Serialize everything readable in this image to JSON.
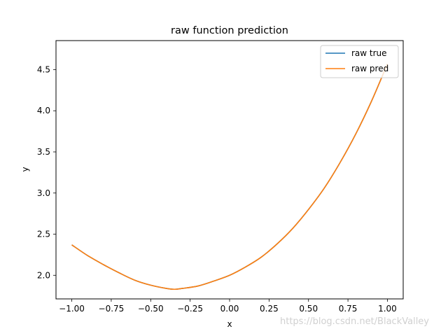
{
  "chart_data": {
    "type": "line",
    "title": "raw function prediction",
    "xlabel": "x",
    "ylabel": "y",
    "xlim": [
      -1.1,
      1.1
    ],
    "ylim": [
      1.713,
      4.853
    ],
    "xticks": [
      -1.0,
      -0.75,
      -0.5,
      -0.25,
      0.0,
      0.25,
      0.5,
      0.75,
      1.0
    ],
    "xtick_labels": [
      "−1.00",
      "−0.75",
      "−0.50",
      "−0.25",
      "0.00",
      "0.25",
      "0.50",
      "0.75",
      "1.00"
    ],
    "yticks": [
      2.0,
      2.5,
      3.0,
      3.5,
      4.0,
      4.5
    ],
    "ytick_labels": [
      "2.0",
      "2.5",
      "3.0",
      "3.5",
      "4.0",
      "4.5"
    ],
    "grid": false,
    "legend_position": "top-right",
    "series": [
      {
        "name": "raw true",
        "color": "#1f77b4",
        "x": [
          -1.0,
          -0.9,
          -0.8,
          -0.7,
          -0.6,
          -0.5,
          -0.4,
          -0.35,
          -0.3,
          -0.2,
          -0.1,
          0.0,
          0.1,
          0.2,
          0.3,
          0.4,
          0.5,
          0.6,
          0.7,
          0.8,
          0.9,
          1.0
        ],
        "y": [
          2.37,
          2.24,
          2.13,
          2.03,
          1.94,
          1.88,
          1.84,
          1.83,
          1.84,
          1.87,
          1.93,
          2.0,
          2.1,
          2.22,
          2.38,
          2.57,
          2.8,
          3.06,
          3.37,
          3.72,
          4.12,
          4.57
        ]
      },
      {
        "name": "raw pred",
        "color": "#ff7f0e",
        "x": [
          -1.0,
          -0.9,
          -0.8,
          -0.7,
          -0.6,
          -0.5,
          -0.4,
          -0.35,
          -0.3,
          -0.2,
          -0.1,
          0.0,
          0.1,
          0.2,
          0.3,
          0.4,
          0.5,
          0.6,
          0.7,
          0.8,
          0.9,
          1.0
        ],
        "y": [
          2.37,
          2.24,
          2.13,
          2.03,
          1.94,
          1.88,
          1.84,
          1.83,
          1.84,
          1.87,
          1.93,
          2.0,
          2.1,
          2.22,
          2.38,
          2.57,
          2.8,
          3.06,
          3.37,
          3.72,
          4.12,
          4.57
        ]
      }
    ]
  },
  "watermark": "https://blog.csdn.net/BlackValley"
}
